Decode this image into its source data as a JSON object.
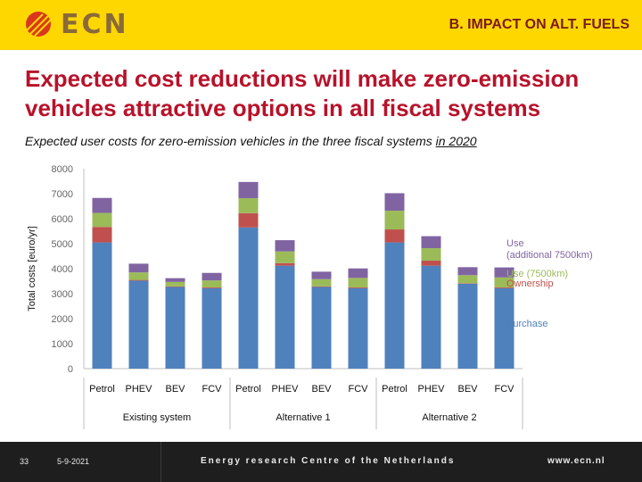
{
  "header": {
    "logo_text": "ECN",
    "section_title": "B. IMPACT ON ALT. FUELS"
  },
  "headline": "Expected cost reductions will make zero-emission vehicles attractive options in all fiscal systems",
  "subtitle_main": "Expected user costs for zero-emission vehicles in the three fiscal systems ",
  "subtitle_year": "in 2020",
  "chart_data": {
    "type": "bar",
    "stacked": true,
    "ylabel": "Total costs [euro/yr]",
    "ylim": [
      0,
      8000
    ],
    "yticks": [
      0,
      1000,
      2000,
      3000,
      4000,
      5000,
      6000,
      7000,
      8000
    ],
    "categories": [
      "Petrol",
      "PHEV",
      "BEV",
      "FCV",
      "Petrol",
      "PHEV",
      "BEV",
      "FCV",
      "Petrol",
      "PHEV",
      "BEV",
      "FCV"
    ],
    "groups": [
      {
        "label": "Existing system",
        "count": 4
      },
      {
        "label": "Alternative 1",
        "count": 4
      },
      {
        "label": "Alternative 2",
        "count": 4
      }
    ],
    "series": [
      {
        "name": "Purchase",
        "color": "#4f81bd",
        "values": [
          5050,
          3520,
          3270,
          3220,
          5650,
          4120,
          3270,
          3220,
          5050,
          4120,
          3400,
          3220
        ]
      },
      {
        "name": "Ownership",
        "color": "#c0504d",
        "values": [
          620,
          30,
          20,
          30,
          570,
          100,
          20,
          30,
          520,
          200,
          20,
          30
        ]
      },
      {
        "name": "Use (7500km)",
        "color": "#9bbb59",
        "values": [
          560,
          300,
          180,
          280,
          600,
          470,
          290,
          380,
          750,
          500,
          320,
          400
        ]
      },
      {
        "name": "Use (additional 7500km)",
        "color": "#8064a2",
        "values": [
          600,
          350,
          150,
          300,
          650,
          450,
          300,
          380,
          700,
          480,
          320,
          400
        ]
      }
    ],
    "legend": [
      "Use\n(additional 7500km)",
      "Use (7500km)",
      "Ownership",
      "Purchase"
    ],
    "legend_position": "right",
    "grid": false
  },
  "footer": {
    "slide_number": "33",
    "date": "5-9-2021",
    "organization": "Energy research Centre of the Netherlands",
    "url": "www.ecn.nl"
  }
}
